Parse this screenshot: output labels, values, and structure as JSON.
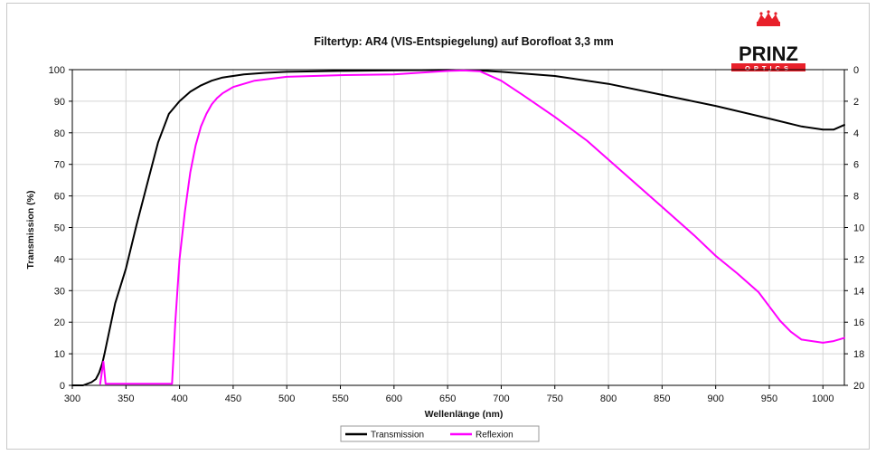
{
  "chart_data": {
    "type": "line",
    "title": "Filtertyp: AR4 (VIS-Entspiegelung) auf Borofloat 3,3 mm",
    "xlabel": "Wellenlänge (nm)",
    "ylabel": "Transmission (%)",
    "xlim": [
      300,
      1020
    ],
    "ylim": [
      0,
      100
    ],
    "y2lim": [
      20,
      0
    ],
    "xticks": [
      300,
      350,
      400,
      450,
      500,
      550,
      600,
      650,
      700,
      750,
      800,
      850,
      900,
      950,
      1000
    ],
    "yticks": [
      0,
      10,
      20,
      30,
      40,
      50,
      60,
      70,
      80,
      90,
      100
    ],
    "y2ticks": [
      0,
      2,
      4,
      6,
      8,
      10,
      12,
      14,
      16,
      18,
      20
    ],
    "grid": true,
    "legend_position": "bottom-center",
    "series": [
      {
        "name": "Transmission",
        "axis": "left",
        "color": "#000000",
        "x": [
          300,
          310,
          318,
          322,
          325,
          328,
          330,
          335,
          340,
          350,
          360,
          370,
          380,
          390,
          400,
          410,
          420,
          430,
          440,
          450,
          460,
          480,
          500,
          550,
          600,
          650,
          680,
          700,
          750,
          800,
          850,
          900,
          950,
          980,
          1000,
          1010,
          1020
        ],
        "values": [
          0,
          0,
          1,
          2,
          4,
          7,
          10,
          18,
          26,
          37,
          51,
          64,
          77,
          86,
          90,
          93,
          95,
          96.5,
          97.5,
          98,
          98.5,
          99,
          99.3,
          99.6,
          99.8,
          99.9,
          99.7,
          99.3,
          98,
          95.5,
          92,
          88.5,
          84.5,
          82,
          81,
          81,
          82.5
        ]
      },
      {
        "name": "Reflexion",
        "axis": "right",
        "color": "#ff00ff",
        "x": [
          326,
          329,
          331,
          393,
          396,
          400,
          405,
          410,
          415,
          420,
          425,
          430,
          435,
          440,
          450,
          470,
          500,
          550,
          600,
          650,
          665,
          680,
          700,
          720,
          750,
          780,
          800,
          820,
          850,
          880,
          900,
          920,
          940,
          950,
          960,
          970,
          980,
          1000,
          1010,
          1020
        ],
        "values": [
          19.9,
          18.5,
          19.9,
          19.9,
          16,
          12,
          9,
          6.5,
          4.8,
          3.6,
          2.8,
          2.2,
          1.8,
          1.5,
          1.1,
          0.7,
          0.45,
          0.35,
          0.3,
          0.08,
          0.05,
          0.1,
          0.7,
          1.6,
          3,
          4.5,
          5.7,
          6.9,
          8.7,
          10.5,
          11.8,
          12.9,
          14.1,
          15,
          15.9,
          16.6,
          17.1,
          17.3,
          17.2,
          17
        ]
      }
    ]
  },
  "logo": {
    "name": "PRINZ",
    "tagline": "OPTICS",
    "crown_color": "#e8202a",
    "text_color": "#111111",
    "band_color": "#e8202a"
  }
}
